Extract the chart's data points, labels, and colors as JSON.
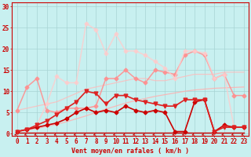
{
  "xlabel": "Vent moyen/en rafales ( km/h )",
  "bg_color": "#c8f0f0",
  "grid_color": "#a8d4d4",
  "x_ticks": [
    0,
    1,
    2,
    3,
    4,
    5,
    6,
    7,
    8,
    9,
    10,
    11,
    12,
    13,
    14,
    15,
    16,
    17,
    18,
    19,
    20,
    21,
    22,
    23
  ],
  "y_ticks": [
    0,
    5,
    10,
    15,
    20,
    25,
    30
  ],
  "ylim": [
    -0.5,
    31
  ],
  "xlim": [
    -0.5,
    23.5
  ],
  "series": [
    {
      "x": [
        0,
        1,
        2,
        3,
        4,
        5,
        6,
        7,
        8,
        9,
        10,
        11,
        12,
        13,
        14,
        15,
        16,
        17,
        18,
        19,
        20,
        21,
        22,
        23
      ],
      "y": [
        0.3,
        0.3,
        0.3,
        0.3,
        0.3,
        0.3,
        0.3,
        0.3,
        0.3,
        0.3,
        0.3,
        0.3,
        0.3,
        0.3,
        0.3,
        0.3,
        0.3,
        0.3,
        0.3,
        0.3,
        0.3,
        0.3,
        0.3,
        0.3
      ],
      "color": "#cc0000",
      "linewidth": 1.0,
      "marker": null,
      "markersize": 0,
      "alpha": 1.0,
      "zorder": 2
    },
    {
      "x": [
        0,
        1,
        2,
        3,
        4,
        5,
        6,
        7,
        8,
        9,
        10,
        11,
        12,
        13,
        14,
        15,
        16,
        17,
        18,
        19,
        20,
        21,
        22,
        23
      ],
      "y": [
        0.5,
        0.8,
        1.2,
        1.7,
        2.2,
        2.8,
        3.5,
        4.2,
        5.0,
        5.8,
        6.5,
        7.2,
        7.8,
        8.3,
        8.8,
        9.2,
        9.6,
        10.0,
        10.3,
        10.5,
        10.7,
        10.8,
        10.9,
        11.0
      ],
      "color": "#ffb0b0",
      "linewidth": 0.9,
      "marker": null,
      "markersize": 0,
      "alpha": 0.85,
      "zorder": 2
    },
    {
      "x": [
        0,
        1,
        2,
        3,
        4,
        5,
        6,
        7,
        8,
        9,
        10,
        11,
        12,
        13,
        14,
        15,
        16,
        17,
        18,
        19,
        20,
        21,
        22,
        23
      ],
      "y": [
        0.5,
        1.0,
        1.5,
        2.0,
        2.5,
        3.5,
        5.0,
        6.0,
        5.0,
        5.5,
        5.0,
        6.5,
        5.5,
        5.0,
        5.5,
        5.0,
        0.5,
        0.5,
        7.5,
        8.0,
        0.5,
        2.0,
        1.5,
        1.5
      ],
      "color": "#cc0000",
      "linewidth": 1.2,
      "marker": "D",
      "markersize": 2.5,
      "alpha": 1.0,
      "zorder": 4
    },
    {
      "x": [
        0,
        1,
        2,
        3,
        4,
        5,
        6,
        7,
        8,
        9,
        10,
        11,
        12,
        13,
        14,
        15,
        16,
        17,
        18,
        19,
        20,
        21,
        22,
        23
      ],
      "y": [
        0.5,
        1.0,
        2.0,
        3.0,
        4.5,
        6.0,
        7.5,
        10.0,
        9.5,
        7.0,
        9.0,
        9.0,
        8.0,
        7.5,
        7.0,
        6.5,
        6.5,
        8.0,
        8.0,
        8.0,
        0.5,
        1.5,
        1.5,
        1.5
      ],
      "color": "#dd2222",
      "linewidth": 1.2,
      "marker": "v",
      "markersize": 3.5,
      "alpha": 1.0,
      "zorder": 4
    },
    {
      "x": [
        0,
        1,
        2,
        3,
        4,
        5,
        6,
        7,
        8,
        9,
        10,
        11,
        12,
        13,
        14,
        15,
        16,
        17,
        18,
        19,
        20,
        21,
        22,
        23
      ],
      "y": [
        5.5,
        6.0,
        6.5,
        7.0,
        7.5,
        8.5,
        9.5,
        10.5,
        11.0,
        11.5,
        12.0,
        12.5,
        13.0,
        13.0,
        12.5,
        12.5,
        13.0,
        13.5,
        14.0,
        14.0,
        14.0,
        14.5,
        14.5,
        14.5
      ],
      "color": "#ffbbbb",
      "linewidth": 0.9,
      "marker": null,
      "markersize": 0,
      "alpha": 0.8,
      "zorder": 2
    },
    {
      "x": [
        0,
        1,
        2,
        3,
        4,
        5,
        6,
        7,
        8,
        9,
        10,
        11,
        12,
        13,
        14,
        15,
        16,
        17,
        18,
        19,
        20,
        21,
        22,
        23
      ],
      "y": [
        5.5,
        11.0,
        13.0,
        5.5,
        5.0,
        6.0,
        6.0,
        6.0,
        6.5,
        13.0,
        13.0,
        15.0,
        13.0,
        12.0,
        15.0,
        14.5,
        14.0,
        18.5,
        19.5,
        18.5,
        13.0,
        14.0,
        9.0,
        9.0
      ],
      "color": "#ff9090",
      "linewidth": 1.1,
      "marker": "D",
      "markersize": 2.5,
      "alpha": 0.9,
      "zorder": 3
    },
    {
      "x": [
        0,
        1,
        2,
        3,
        4,
        5,
        6,
        7,
        8,
        9,
        10,
        11,
        12,
        13,
        14,
        15,
        16,
        17,
        18,
        19,
        20,
        21,
        22,
        23
      ],
      "y": [
        0.5,
        1.0,
        2.0,
        7.0,
        13.5,
        12.0,
        12.0,
        26.0,
        24.5,
        19.0,
        23.5,
        19.5,
        19.5,
        18.5,
        17.0,
        15.5,
        13.0,
        19.5,
        19.5,
        19.0,
        13.0,
        14.0,
        1.5,
        1.5
      ],
      "color": "#ffcccc",
      "linewidth": 1.1,
      "marker": "D",
      "markersize": 2.5,
      "alpha": 0.8,
      "zorder": 3
    }
  ],
  "arrow_color": "#cc0000",
  "xlabel_fontsize": 6,
  "tick_fontsize": 5.5
}
